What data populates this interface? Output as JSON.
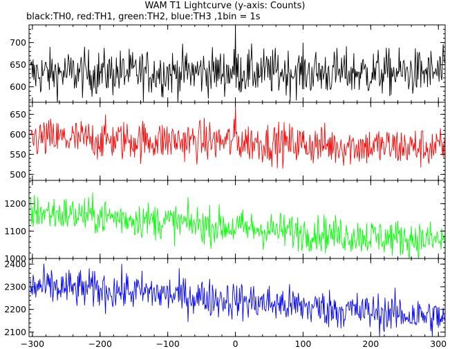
{
  "chart_data": {
    "type": "line",
    "title": "WAM T1 Lightcurve (y-axis: Counts)",
    "subtitle": "black:TH0, red:TH1, green:TH2, blue:TH3 ,1bin = 1s",
    "xlim": [
      -305,
      310
    ],
    "x_ticks": [
      -300,
      -200,
      -100,
      0,
      100,
      200,
      300
    ],
    "x_tick_labels": [
      "−300",
      "−200",
      "−100",
      "0",
      "100",
      "200",
      "300"
    ],
    "grid": false,
    "panels": [
      {
        "name": "TH0",
        "color": "#000000",
        "ylim": [
          565,
          740
        ],
        "y_ticks": [
          600,
          650,
          700
        ],
        "y_tick_labels": [
          "600",
          "650",
          "700"
        ],
        "noise": 26,
        "spike": {
          "x": 0,
          "y": 740
        },
        "series_trend": [
          {
            "x": -300,
            "y": 630
          },
          {
            "x": -150,
            "y": 632
          },
          {
            "x": 0,
            "y": 634
          },
          {
            "x": 150,
            "y": 632
          },
          {
            "x": 305,
            "y": 632
          }
        ]
      },
      {
        "name": "TH1",
        "color": "#ff0000",
        "ylim": [
          485,
          680
        ],
        "y_ticks": [
          500,
          550,
          600,
          650
        ],
        "y_tick_labels": [
          "500",
          "550",
          "600",
          "650"
        ],
        "noise": 25,
        "spike": {
          "x": 0,
          "y": 668
        },
        "series_trend": [
          {
            "x": -300,
            "y": 590
          },
          {
            "x": -150,
            "y": 585
          },
          {
            "x": 0,
            "y": 582
          },
          {
            "x": 150,
            "y": 572
          },
          {
            "x": 305,
            "y": 566
          }
        ]
      },
      {
        "name": "TH2",
        "color": "#00ff00",
        "ylim": [
          1000,
          1285
        ],
        "y_ticks": [
          1000,
          1100,
          1200
        ],
        "y_tick_labels": [
          "1000",
          "1100",
          "1200"
        ],
        "noise": 33,
        "series_trend": [
          {
            "x": -300,
            "y": 1170
          },
          {
            "x": -150,
            "y": 1145
          },
          {
            "x": 0,
            "y": 1112
          },
          {
            "x": 150,
            "y": 1088
          },
          {
            "x": 305,
            "y": 1065
          }
        ]
      },
      {
        "name": "TH3",
        "color": "#0000ff",
        "ylim": [
          2080,
          2425
        ],
        "y_ticks": [
          2100,
          2200,
          2300,
          2400
        ],
        "y_tick_labels": [
          "2100",
          "2200",
          "2300",
          "2400"
        ],
        "noise": 42,
        "series_trend": [
          {
            "x": -300,
            "y": 2300
          },
          {
            "x": -150,
            "y": 2280
          },
          {
            "x": 0,
            "y": 2240
          },
          {
            "x": 150,
            "y": 2200
          },
          {
            "x": 305,
            "y": 2165
          }
        ]
      }
    ]
  }
}
